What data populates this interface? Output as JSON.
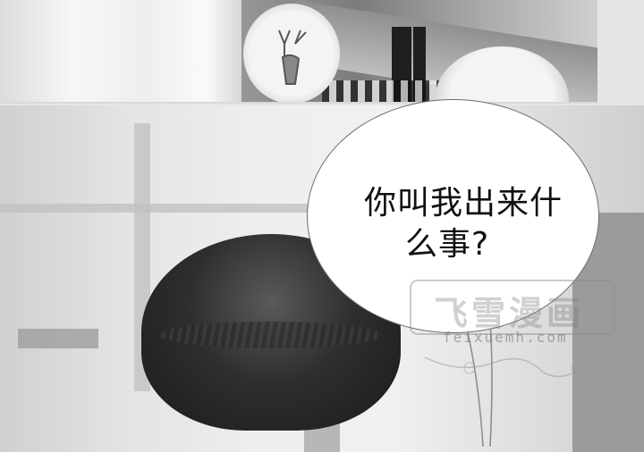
{
  "speech_bubble": {
    "line1": "你叫我出来什",
    "line2": "么事?"
  },
  "watermark": {
    "title": "飞雪漫画",
    "url": "feixuemh.com"
  }
}
